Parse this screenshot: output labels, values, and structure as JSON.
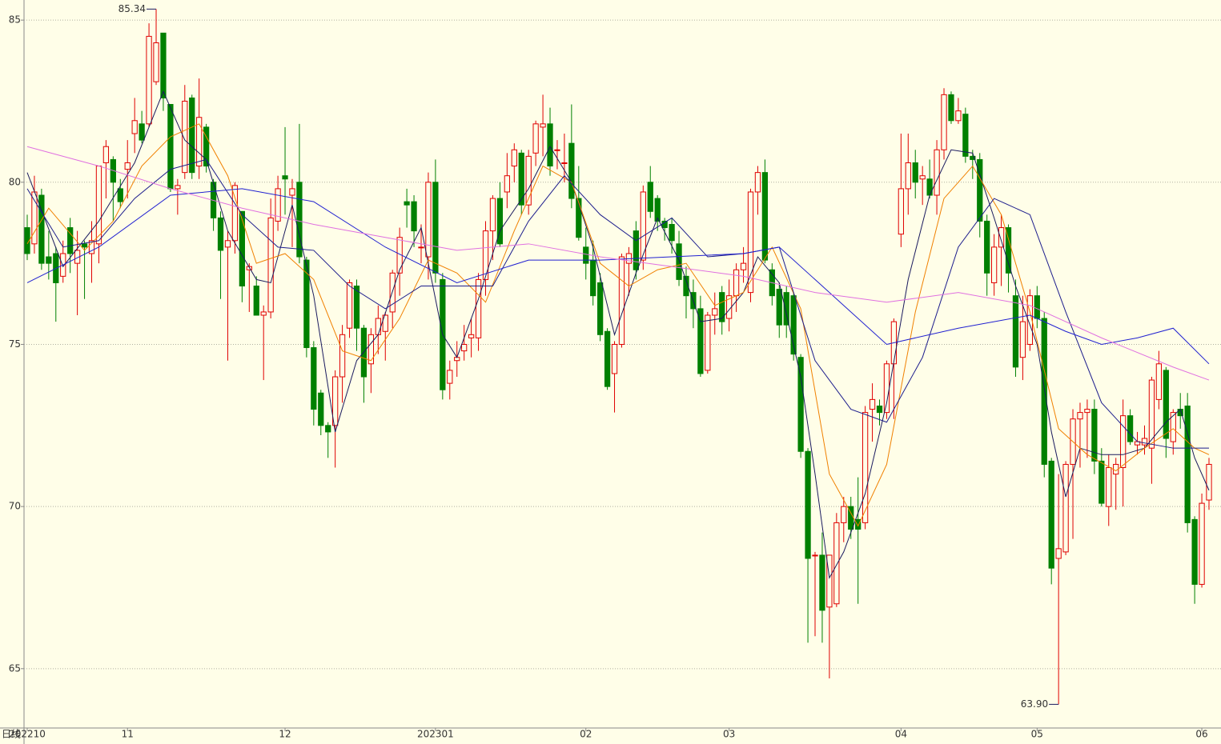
{
  "chart_data": {
    "type": "candlestick",
    "period_label": "日线",
    "categories": [
      "202210",
      null,
      null,
      null,
      null,
      null,
      null,
      null,
      null,
      null,
      null,
      null,
      null,
      null,
      "11",
      null,
      null,
      null,
      null,
      null,
      null,
      null,
      null,
      null,
      null,
      null,
      null,
      null,
      null,
      null,
      null,
      null,
      null,
      null,
      null,
      null,
      "12",
      null,
      null,
      null,
      null,
      null,
      null,
      null,
      null,
      null,
      null,
      null,
      null,
      null,
      null,
      null,
      null,
      null,
      null,
      null,
      null,
      "202301",
      null,
      null,
      null,
      null,
      null,
      null,
      null,
      null,
      null,
      null,
      null,
      null,
      null,
      null,
      null,
      null,
      null,
      null,
      null,
      null,
      "02",
      null,
      null,
      null,
      null,
      null,
      null,
      null,
      null,
      null,
      null,
      null,
      null,
      null,
      null,
      null,
      null,
      null,
      null,
      null,
      "03",
      null,
      null,
      null,
      null,
      null,
      null,
      null,
      null,
      null,
      null,
      null,
      null,
      null,
      null,
      null,
      null,
      null,
      null,
      null,
      null,
      null,
      null,
      null,
      "04",
      null,
      null,
      null,
      null,
      null,
      null,
      null,
      null,
      null,
      null,
      null,
      null,
      null,
      null,
      null,
      null,
      null,
      null,
      "05",
      null,
      null,
      null,
      null,
      null,
      null,
      null,
      null,
      null,
      null,
      null,
      null,
      null,
      null,
      null,
      null,
      null,
      null,
      null,
      null,
      null,
      null,
      "06",
      null
    ],
    "open": [
      78.6,
      78.1,
      79.6,
      77.7,
      77.8,
      77.1,
      78.6,
      77.5,
      78.1,
      77.8,
      78.1,
      80.6,
      80.7,
      79.8,
      80.4,
      81.5,
      81.8,
      81.8,
      83.1,
      84.6,
      82.4,
      79.8,
      80.3,
      82.6,
      80.5,
      81.7,
      80.0,
      78.9,
      78.0,
      78.2,
      79.1,
      77.3,
      76.8,
      75.9,
      76.0,
      78.8,
      80.2,
      79.6,
      80.0,
      77.6,
      74.9,
      73.5,
      72.5,
      72.5,
      74.0,
      75.5,
      76.8,
      75.5,
      74.4,
      75.3,
      75.4,
      76.0,
      77.2,
      79.4,
      79.4,
      78.0,
      77.7,
      80.0,
      77.0,
      73.8,
      74.5,
      74.8,
      75.2,
      75.2,
      77.0,
      78.5,
      79.5,
      79.7,
      80.5,
      80.9,
      79.3,
      80.9,
      81.7,
      81.8,
      81.0,
      80.6,
      81.2,
      79.5,
      78.0,
      77.6,
      76.9,
      75.4,
      74.1,
      75.0,
      77.5,
      78.5,
      77.6,
      80.0,
      79.5,
      78.8,
      78.7,
      78.1,
      77.1,
      76.6,
      76.1,
      74.2,
      75.9,
      76.6,
      75.8,
      76.5,
      77.3,
      76.6,
      79.7,
      80.3,
      77.3,
      76.7,
      76.6,
      76.5,
      74.6,
      71.7,
      68.5,
      68.5,
      66.9,
      67.0,
      69.5,
      70.0,
      69.6,
      69.5,
      73.0,
      73.1,
      72.9,
      74.4,
      78.4,
      79.8,
      80.6,
      80.1,
      80.1,
      79.6,
      81.0,
      82.7,
      81.9,
      82.1,
      80.8,
      80.7,
      78.8,
      76.9,
      78.0,
      78.6,
      76.5,
      74.6,
      75.0,
      76.5,
      75.8,
      71.4,
      68.4,
      68.6,
      71.3,
      72.7,
      72.9,
      73.0,
      71.4,
      70.0,
      71.0,
      71.2,
      72.8,
      71.9,
      71.9,
      71.8,
      73.3,
      74.2,
      72.0,
      73.0,
      73.1,
      69.6,
      67.6,
      70.2
    ],
    "high": [
      79.0,
      80.2,
      79.8,
      78.5,
      78.0,
      78.2,
      78.9,
      78.5,
      78.2,
      78.8,
      80.5,
      81.3,
      80.8,
      80.1,
      81.3,
      82.6,
      82.2,
      84.9,
      85.34,
      84.6,
      82.4,
      80.1,
      83.0,
      82.7,
      83.2,
      81.8,
      80.1,
      79.1,
      78.5,
      80.0,
      79.1,
      77.5,
      77.1,
      76.2,
      79.5,
      80.2,
      81.7,
      80.1,
      81.8,
      77.7,
      75.1,
      73.6,
      72.6,
      74.2,
      75.6,
      77.0,
      77.0,
      75.6,
      75.5,
      76.2,
      76.0,
      77.3,
      78.6,
      79.8,
      79.6,
      78.7,
      80.3,
      80.7,
      77.2,
      74.5,
      75.1,
      75.6,
      75.8,
      77.2,
      78.8,
      79.6,
      80.0,
      80.9,
      81.2,
      81.0,
      81.0,
      81.9,
      82.7,
      82.3,
      81.3,
      81.5,
      82.4,
      80.5,
      78.6,
      78.2,
      77.2,
      75.5,
      75.1,
      77.8,
      78.0,
      78.8,
      79.9,
      80.5,
      79.6,
      78.9,
      78.9,
      78.5,
      77.4,
      77.0,
      76.5,
      76.0,
      76.6,
      76.8,
      77.0,
      77.5,
      78.0,
      79.8,
      80.5,
      80.7,
      77.5,
      76.9,
      76.8,
      76.6,
      74.7,
      71.8,
      68.6,
      69.2,
      68.5,
      69.8,
      70.3,
      70.3,
      70.9,
      73.1,
      73.8,
      73.3,
      74.5,
      75.8,
      81.5,
      81.5,
      81.0,
      80.5,
      80.7,
      81.3,
      82.9,
      82.8,
      82.6,
      82.3,
      81.0,
      80.9,
      79.0,
      78.4,
      79.0,
      78.7,
      77.0,
      76.5,
      76.7,
      76.8,
      76.0,
      71.5,
      71.0,
      71.4,
      73.0,
      73.2,
      73.3,
      73.3,
      71.8,
      71.6,
      71.5,
      73.3,
      73.0,
      72.3,
      72.5,
      74.0,
      74.8,
      74.3,
      73.0,
      73.5,
      73.5,
      69.7,
      70.4,
      71.5
    ],
    "low": [
      77.6,
      77.8,
      77.3,
      77.0,
      75.7,
      76.9,
      77.2,
      75.9,
      76.4,
      76.9,
      77.5,
      79.5,
      78.8,
      79.2,
      79.5,
      80.9,
      81.2,
      81.7,
      83.0,
      82.2,
      79.7,
      79.0,
      80.1,
      80.1,
      80.1,
      80.3,
      78.5,
      76.4,
      74.5,
      77.8,
      76.3,
      76.0,
      75.9,
      73.9,
      75.8,
      78.5,
      79.0,
      78.0,
      77.5,
      74.6,
      72.5,
      72.2,
      71.5,
      71.2,
      73.2,
      75.2,
      74.8,
      73.2,
      73.5,
      74.7,
      74.5,
      75.5,
      76.5,
      78.6,
      78.0,
      77.5,
      77.0,
      76.9,
      73.3,
      73.3,
      74.0,
      74.5,
      74.6,
      74.8,
      76.5,
      77.6,
      78.0,
      79.2,
      80.0,
      79.0,
      79.0,
      80.5,
      80.8,
      80.2,
      80.4,
      80.0,
      79.2,
      78.2,
      77.0,
      76.2,
      75.1,
      73.6,
      72.9,
      74.9,
      76.5,
      77.0,
      77.3,
      78.9,
      78.5,
      78.2,
      77.8,
      76.8,
      75.8,
      75.5,
      74.0,
      74.1,
      75.3,
      75.3,
      75.4,
      76.0,
      76.9,
      76.3,
      79.0,
      77.5,
      76.2,
      75.2,
      75.2,
      74.5,
      71.5,
      65.8,
      66.0,
      65.8,
      64.7,
      66.9,
      68.9,
      69.0,
      67.0,
      69.3,
      72.0,
      72.5,
      72.7,
      72.7,
      78.0,
      79.0,
      79.5,
      79.3,
      79.5,
      79.0,
      80.7,
      81.8,
      81.8,
      80.6,
      80.1,
      78.3,
      76.5,
      76.5,
      76.8,
      76.6,
      74.0,
      73.9,
      74.8,
      75.5,
      70.9,
      67.6,
      63.9,
      68.5,
      69.0,
      71.2,
      71.5,
      71.0,
      70.0,
      69.4,
      69.9,
      70.0,
      71.9,
      71.6,
      71.6,
      70.7,
      73.0,
      71.5,
      71.6,
      72.4,
      69.2,
      67.0,
      67.5,
      69.9
    ],
    "close": [
      77.8,
      79.7,
      77.5,
      77.5,
      76.9,
      77.8,
      77.8,
      77.9,
      78.0,
      78.2,
      80.5,
      81.1,
      80.0,
      79.4,
      80.6,
      81.9,
      81.3,
      84.5,
      84.3,
      82.6,
      79.8,
      79.9,
      82.5,
      80.3,
      82.0,
      80.5,
      78.9,
      77.9,
      78.2,
      79.9,
      76.8,
      77.4,
      75.9,
      76.0,
      78.9,
      79.8,
      80.1,
      79.8,
      77.7,
      74.9,
      73.0,
      72.5,
      72.3,
      74.0,
      75.3,
      76.9,
      75.5,
      74.0,
      75.3,
      75.8,
      75.9,
      77.2,
      78.3,
      79.3,
      78.5,
      78.0,
      80.0,
      77.2,
      73.6,
      74.2,
      74.6,
      75.0,
      75.3,
      77.0,
      78.5,
      79.5,
      78.1,
      80.2,
      81.0,
      79.3,
      80.8,
      81.8,
      81.8,
      80.5,
      81.0,
      80.6,
      79.5,
      78.3,
      77.5,
      76.5,
      75.3,
      73.7,
      75.0,
      77.7,
      77.8,
      77.3,
      79.7,
      79.1,
      78.8,
      78.6,
      78.2,
      77.0,
      76.5,
      76.1,
      74.1,
      75.9,
      76.1,
      75.7,
      76.5,
      77.3,
      77.5,
      79.7,
      80.3,
      77.6,
      76.5,
      75.6,
      75.6,
      74.7,
      71.7,
      68.4,
      68.5,
      66.8,
      68.5,
      69.5,
      70.0,
      69.3,
      69.3,
      72.9,
      73.3,
      72.9,
      74.4,
      75.7,
      79.8,
      80.6,
      80.0,
      80.2,
      79.6,
      81.0,
      82.7,
      81.9,
      82.2,
      80.8,
      80.7,
      78.8,
      77.2,
      78.0,
      78.6,
      77.2,
      74.3,
      75.7,
      76.5,
      75.8,
      71.3,
      68.1,
      68.7,
      71.3,
      72.7,
      72.9,
      73.0,
      71.4,
      70.1,
      71.2,
      71.3,
      72.8,
      72.0,
      72.0,
      72.1,
      73.9,
      74.4,
      72.1,
      72.9,
      72.8,
      69.5,
      67.6,
      70.1,
      71.3
    ],
    "up_color": "#e00000",
    "down_color": "#008000",
    "series": [
      {
        "color": "#1a1a5e",
        "x": [
          0,
          5,
          10,
          15,
          19,
          22,
          25,
          28,
          32,
          34,
          37,
          40,
          43,
          46,
          49,
          52,
          55,
          58,
          60,
          63,
          66,
          70,
          73,
          76,
          79,
          82,
          85,
          88,
          91,
          94,
          97,
          100,
          102,
          105,
          108,
          110,
          112,
          114,
          117,
          120,
          123,
          126,
          129,
          132,
          135,
          138,
          141,
          143,
          145,
          147,
          150,
          153,
          156,
          159,
          161,
          163,
          165
        ],
        "values": [
          80.3,
          77.4,
          78.8,
          80.6,
          82.8,
          81.3,
          80.7,
          78.5,
          77.0,
          76.9,
          79.3,
          76.5,
          72.3,
          74.5,
          75.3,
          77.3,
          78.6,
          75.3,
          74.6,
          76.4,
          78.5,
          79.8,
          81.1,
          80.0,
          78.0,
          75.3,
          77.2,
          78.9,
          77.6,
          75.7,
          75.8,
          76.6,
          77.7,
          76.9,
          74.0,
          71.0,
          67.8,
          68.6,
          70.4,
          73.2,
          77.0,
          79.6,
          81.0,
          80.9,
          78.9,
          76.8,
          75.0,
          72.3,
          70.3,
          71.8,
          71.6,
          71.6,
          71.8,
          72.6,
          73.0,
          71.5,
          70.5
        ]
      },
      {
        "color": "#f08000",
        "x": [
          0,
          3,
          8,
          12,
          16,
          20,
          24,
          28,
          32,
          36,
          40,
          44,
          48,
          52,
          56,
          60,
          64,
          68,
          72,
          76,
          80,
          84,
          88,
          92,
          96,
          100,
          104,
          108,
          112,
          116,
          120,
          124,
          128,
          132,
          136,
          140,
          144,
          148,
          152,
          156,
          160,
          163,
          165
        ],
        "values": [
          78.1,
          79.2,
          77.9,
          78.8,
          80.5,
          81.4,
          81.8,
          80.2,
          77.5,
          77.8,
          77.0,
          74.8,
          74.5,
          75.8,
          77.6,
          77.2,
          76.3,
          78.5,
          80.5,
          80.0,
          77.5,
          76.8,
          77.3,
          77.5,
          76.2,
          76.6,
          78.0,
          76.1,
          71.0,
          69.4,
          71.3,
          76.0,
          79.5,
          80.5,
          79.0,
          76.0,
          72.4,
          71.6,
          71.1,
          71.8,
          72.4,
          71.8,
          71.6
        ]
      },
      {
        "color": "#1c1c8c",
        "x": [
          0,
          5,
          10,
          15,
          20,
          25,
          30,
          35,
          40,
          45,
          50,
          55,
          60,
          65,
          70,
          75,
          80,
          85,
          90,
          95,
          100,
          105,
          110,
          115,
          120,
          125,
          130,
          135,
          140,
          145,
          150,
          155,
          160,
          165
        ],
        "values": [
          79.8,
          78.0,
          78.2,
          79.5,
          80.4,
          80.7,
          79.0,
          78.0,
          77.9,
          76.8,
          76.1,
          76.8,
          76.8,
          76.8,
          78.8,
          80.2,
          79.0,
          78.2,
          78.9,
          77.7,
          77.8,
          78.0,
          74.5,
          73.0,
          72.6,
          74.6,
          78.0,
          79.5,
          79.0,
          76.0,
          73.2,
          72.0,
          71.8,
          71.8
        ]
      },
      {
        "color": "#2020d0",
        "x": [
          0,
          10,
          20,
          30,
          40,
          50,
          60,
          70,
          80,
          90,
          100,
          105,
          110,
          120,
          130,
          140,
          145,
          150,
          155,
          160,
          165
        ],
        "values": [
          76.9,
          78.0,
          79.6,
          79.8,
          79.4,
          78.0,
          76.9,
          77.6,
          77.6,
          77.7,
          77.8,
          78.0,
          77.0,
          75.0,
          75.5,
          75.9,
          75.4,
          75.0,
          75.2,
          75.5,
          74.4
        ]
      },
      {
        "color": "#e070e0",
        "x": [
          0,
          10,
          20,
          30,
          40,
          50,
          60,
          70,
          80,
          90,
          100,
          110,
          120,
          130,
          140,
          150,
          160,
          165
        ],
        "values": [
          81.1,
          80.5,
          79.8,
          79.2,
          78.7,
          78.3,
          77.9,
          78.1,
          77.7,
          77.4,
          77.1,
          76.6,
          76.3,
          76.6,
          76.2,
          75.2,
          74.3,
          73.9
        ]
      }
    ],
    "high_label": "85.34",
    "low_label": "63.90",
    "ylim": [
      63.17,
      85.62
    ],
    "yticks": [
      65,
      70,
      75,
      80,
      85
    ],
    "grid": true
  }
}
